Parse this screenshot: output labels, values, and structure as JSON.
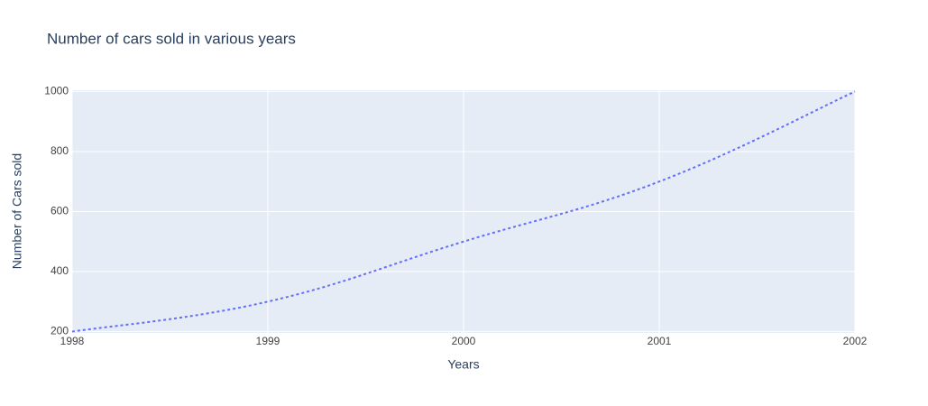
{
  "chart_data": {
    "type": "line",
    "title": "Number of cars sold in various years",
    "x_label": "Years",
    "y_label": "Number of Cars sold",
    "x": [
      1998,
      1999,
      2000,
      2001,
      2002
    ],
    "series": [
      {
        "color": "#636efa",
        "values": [
          200,
          300,
          500,
          700,
          1000
        ]
      }
    ],
    "xlim": [
      1998,
      2002
    ],
    "xticks": [
      1998,
      1999,
      2000,
      2001,
      2002
    ],
    "ylim": [
      195.7,
      1004.3
    ],
    "yticks": [
      200,
      400,
      600,
      800,
      1000
    ],
    "grid": true
  }
}
